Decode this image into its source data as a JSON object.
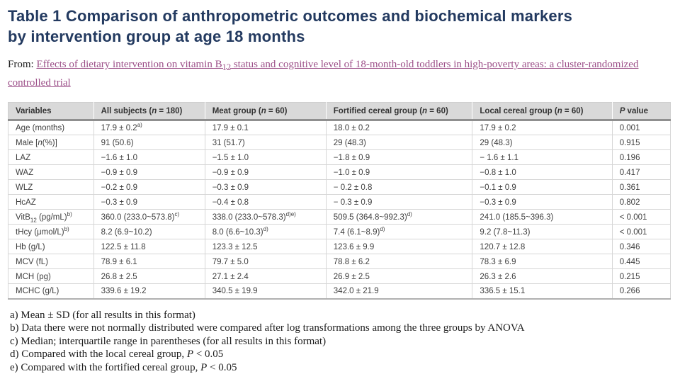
{
  "colors": {
    "title": "#233a60",
    "link": "#9c4f88",
    "header_bg": "#d9d9d9",
    "header_border": "#8f8f8f",
    "cell_border": "#d6d6d6",
    "cell_text": "#3e3e3e"
  },
  "title": {
    "line1": "Table 1 Comparison of anthropometric outcomes and biochemical markers",
    "line2": "by intervention group at age 18 months"
  },
  "source": {
    "prefix": "From: ",
    "link": "Effects of dietary intervention on vitamin B_{12} status and cognitive level of 18-month-old toddlers in high-poverty areas: a cluster-randomized controlled trial"
  },
  "table": {
    "column_widths_pct": [
      12.9,
      16.8,
      18.3,
      22.1,
      21.1,
      8.8
    ],
    "headers": [
      "Variables",
      "All subjects (*{n} = 180)",
      "Meat group (*{n} = 60)",
      "Fortified cereal group (*{n} = 60)",
      "Local cereal group (*{n} = 60)",
      "*{P} value"
    ],
    "rows": [
      [
        "Age (months)",
        "17.9 ± 0.2^{a)}",
        "17.9 ± 0.1",
        "18.0 ± 0.2",
        "17.9 ± 0.2",
        "0.001"
      ],
      [
        "Male [*{n}(%)]",
        "91 (50.6)",
        "31 (51.7)",
        "29 (48.3)",
        "29 (48.3)",
        "0.915"
      ],
      [
        "LAZ",
        "−1.6 ± 1.0",
        "−1.5 ± 1.0",
        "−1.8 ± 0.9",
        "− 1.6 ± 1.1",
        "0.196"
      ],
      [
        "WAZ",
        "−0.9 ± 0.9",
        "−0.9 ± 0.9",
        "−1.0 ± 0.9",
        "−0.8 ± 1.0",
        "0.417"
      ],
      [
        "WLZ",
        "−0.2 ± 0.9",
        "−0.3 ± 0.9",
        "− 0.2 ± 0.8",
        "−0.1 ± 0.9",
        "0.361"
      ],
      [
        "HcAZ",
        "−0.3 ± 0.9",
        "−0.4 ± 0.8",
        "− 0.3 ± 0.9",
        "−0.3 ± 0.9",
        "0.802"
      ],
      [
        "VitB_{12} (pg/mL)^{b)}",
        "360.0 (233.0~573.8)^{c)}",
        "338.0 (233.0~578.3)^{d)e)}",
        "509.5 (364.8~992.3)^{d)}",
        "241.0 (185.5~396.3)",
        "< 0.001"
      ],
      [
        "tHcy (μmol/L)^{b)}",
        "8.2 (6.9~10.2)",
        "8.0 (6.6~10.3)^{d)}",
        "7.4 (6.1~8.9)^{d)}",
        "9.2 (7.8~11.3)",
        "< 0.001"
      ],
      [
        "Hb (g/L)",
        "122.5 ± 11.8",
        "123.3 ± 12.5",
        "123.6 ± 9.9",
        "120.7 ± 12.8",
        "0.346"
      ],
      [
        "MCV (fL)",
        "78.9 ± 6.1",
        "79.7 ± 5.0",
        "78.8 ± 6.2",
        "78.3 ± 6.9",
        "0.445"
      ],
      [
        "MCH (pg)",
        "26.8 ± 2.5",
        "27.1 ± 2.4",
        "26.9 ± 2.5",
        "26.3 ± 2.6",
        "0.215"
      ],
      [
        "MCHC (g/L)",
        "339.6 ± 19.2",
        "340.5 ± 19.9",
        "342.0 ± 21.9",
        "336.5 ± 15.1",
        "0.266"
      ]
    ]
  },
  "footnotes": [
    "a) Mean ± SD (for all results in this format)",
    "b) Data there were not normally distributed were compared after log transformations among the three groups by ANOVA",
    "c) Median; interquartile range in parentheses (for all results in this format)",
    "d) Compared with the local cereal group, *{P} < 0.05",
    "e) Compared with the fortified cereal group, *{P} < 0.05"
  ]
}
